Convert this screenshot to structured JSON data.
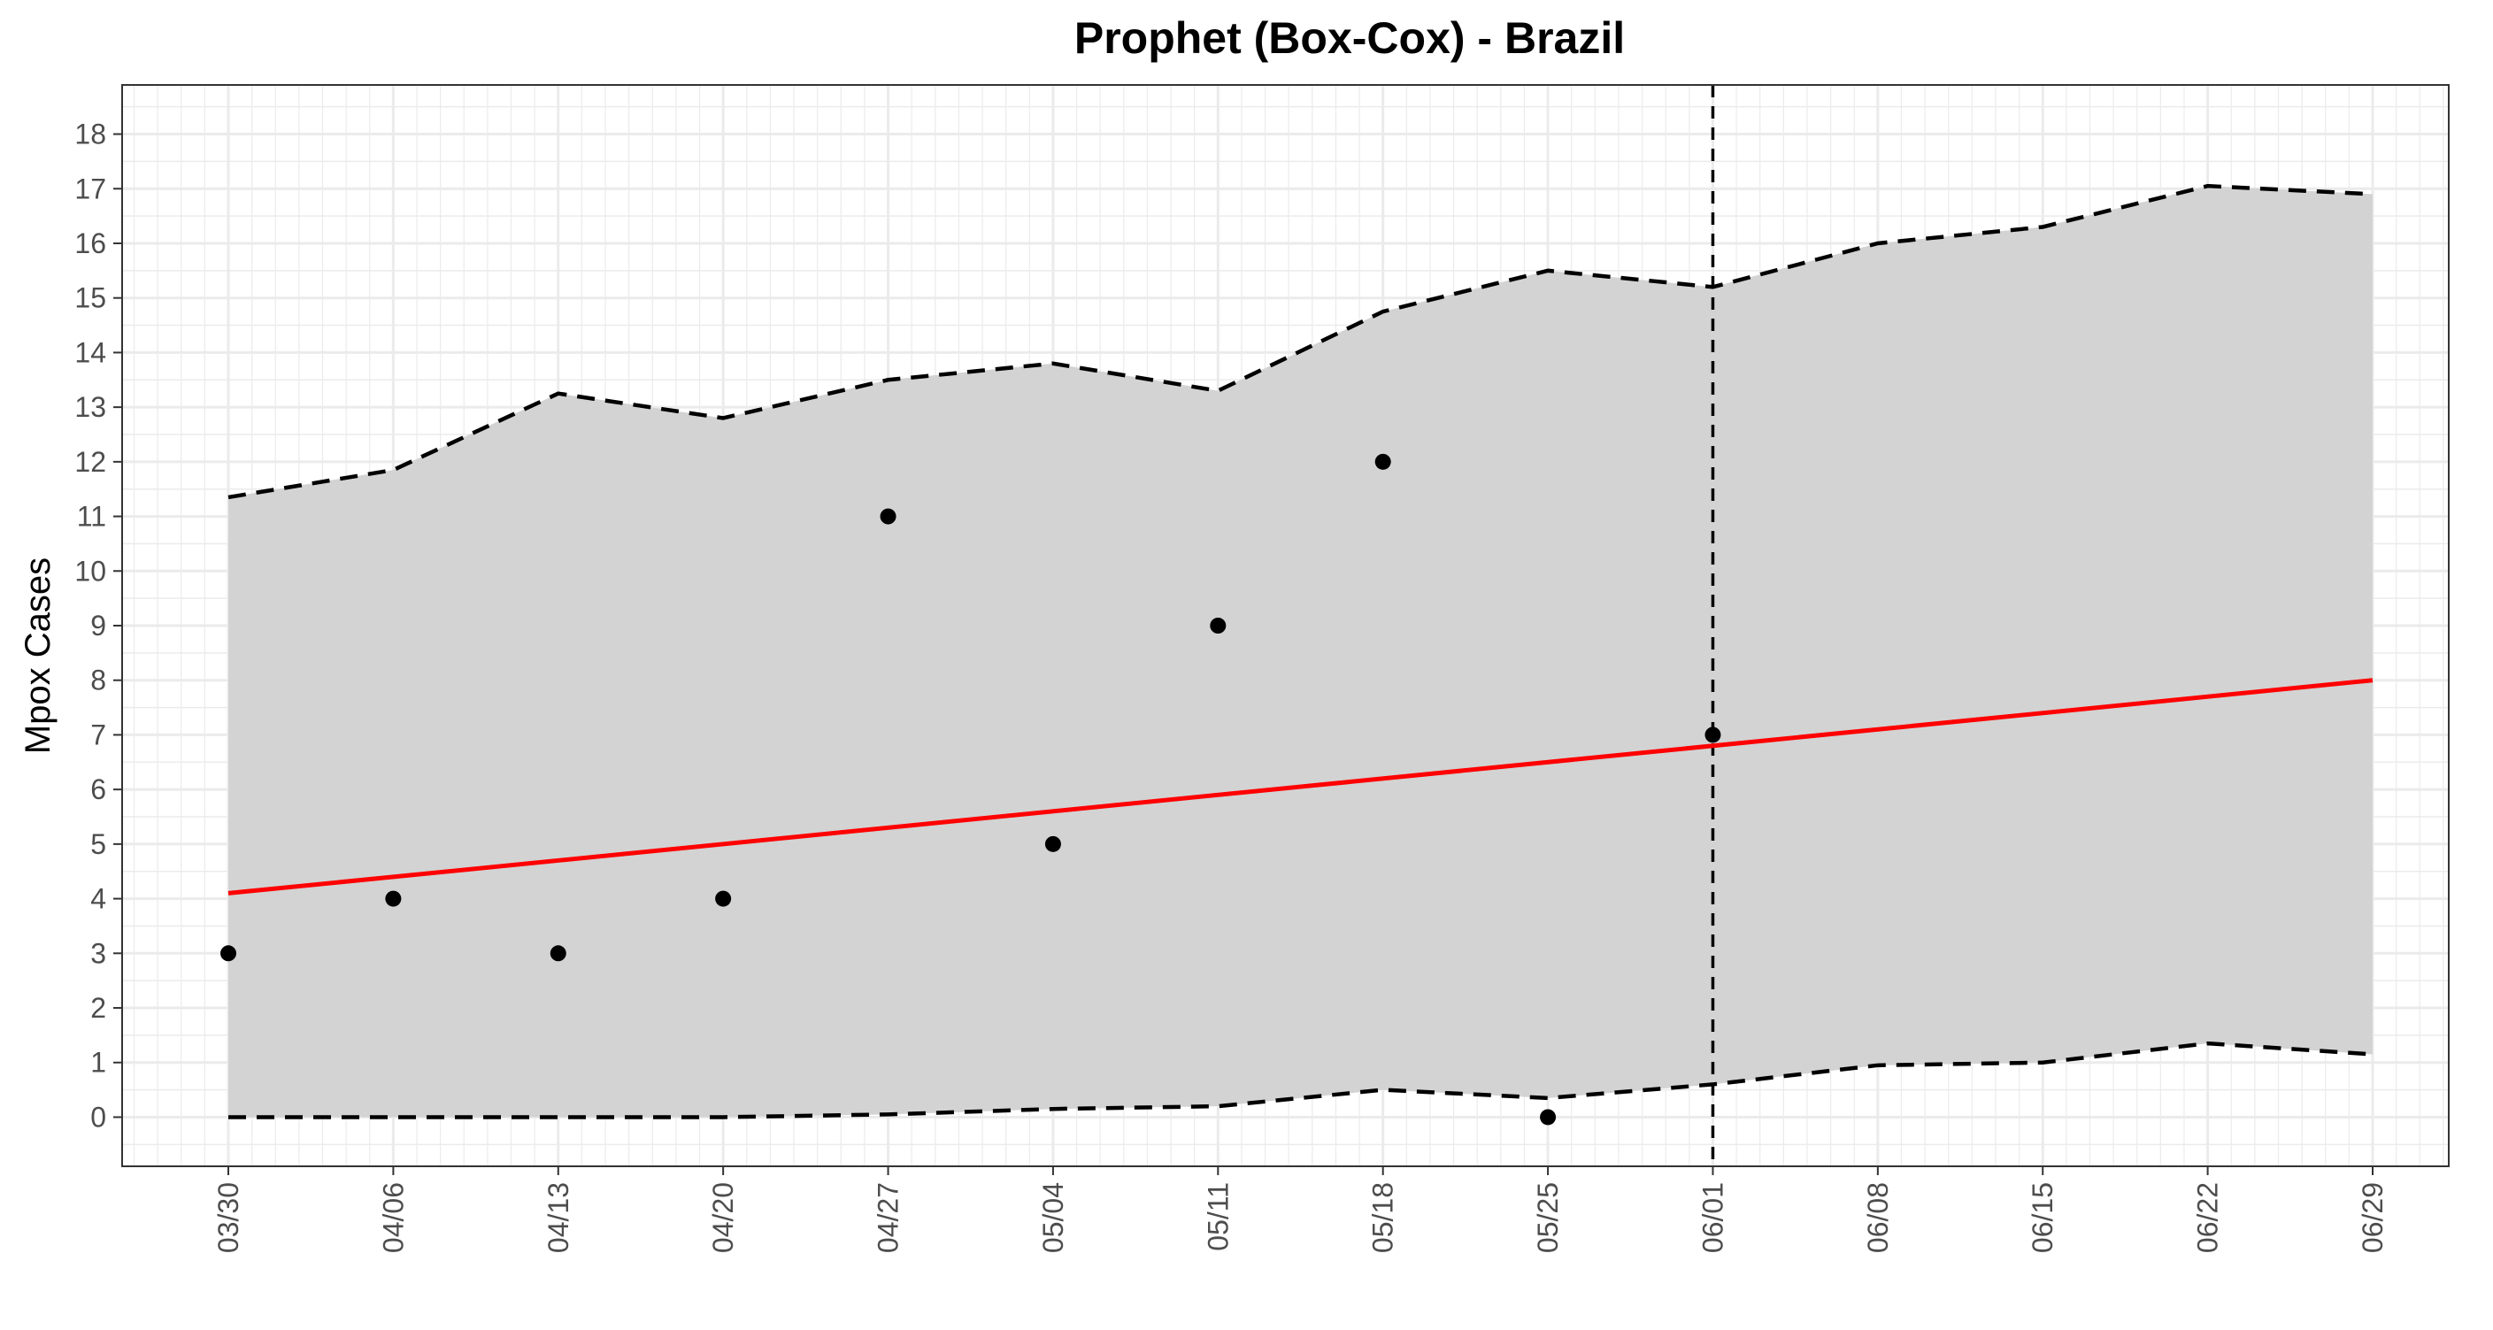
{
  "chart_data": {
    "type": "line",
    "title": "Prophet (Box-Cox) - Brazil",
    "xlabel": "",
    "ylabel": "Mpox Cases",
    "x_tick_labels": [
      "03/30",
      "04/06",
      "04/13",
      "04/20",
      "04/27",
      "05/04",
      "05/11",
      "05/18",
      "05/25",
      "06/01",
      "06/08",
      "06/15",
      "06/22",
      "06/29"
    ],
    "ylim": [
      -0.9,
      18.9
    ],
    "y_ticks": [
      0,
      1,
      2,
      3,
      4,
      5,
      6,
      7,
      8,
      9,
      10,
      11,
      12,
      13,
      14,
      15,
      16,
      17,
      18
    ],
    "grid": true,
    "forecast_start": "06/01",
    "observed": {
      "x": [
        "03/30",
        "04/06",
        "04/13",
        "04/20",
        "04/27",
        "05/04",
        "05/11",
        "05/18",
        "05/25",
        "06/01"
      ],
      "y": [
        3,
        4,
        3,
        4,
        11,
        5,
        9,
        12,
        0,
        7
      ]
    },
    "fitted": {
      "x": [
        "03/30",
        "06/29"
      ],
      "y": [
        4.1,
        8.0
      ]
    },
    "interval_upper": {
      "x": [
        "03/30",
        "04/06",
        "04/13",
        "04/20",
        "04/27",
        "05/04",
        "05/11",
        "05/18",
        "05/25",
        "06/01",
        "06/08",
        "06/15",
        "06/22",
        "06/29"
      ],
      "y": [
        11.35,
        11.85,
        13.25,
        12.8,
        13.5,
        13.8,
        13.3,
        14.75,
        15.5,
        15.2,
        16.0,
        16.3,
        17.05,
        16.9
      ]
    },
    "interval_lower": {
      "x": [
        "03/30",
        "04/06",
        "04/13",
        "04/20",
        "04/27",
        "05/04",
        "05/11",
        "05/18",
        "05/25",
        "06/01",
        "06/08",
        "06/15",
        "06/22",
        "06/29"
      ],
      "y": [
        0,
        0,
        0,
        0,
        0.05,
        0.15,
        0.2,
        0.5,
        0.35,
        0.6,
        0.95,
        1.0,
        1.35,
        1.15
      ]
    },
    "colors": {
      "fitted_line": "#ff0000",
      "interval_fill": "#d3d3d3",
      "points": "#000000",
      "bounds": "#000000",
      "grid": "#ebebeb"
    }
  }
}
